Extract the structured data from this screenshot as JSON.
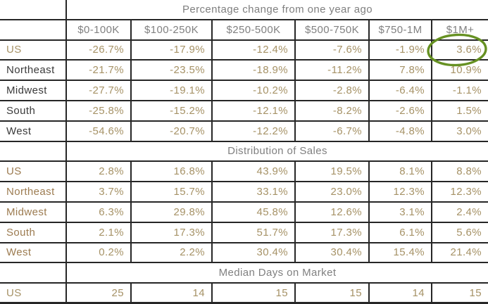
{
  "page": {
    "background": "#ffffff"
  },
  "chart_data": [
    {
      "type": "table",
      "title": "Percentage change from one year ago",
      "columns": [
        "$0-100K",
        "$100-250K",
        "$250-500K",
        "$500-750K",
        "$750-1M",
        "$1M+"
      ],
      "show_column_headers": true,
      "rows": [
        {
          "label": "US",
          "label_style": "tan",
          "values": [
            "-26.7%",
            "-17.9%",
            "-12.4%",
            "-7.6%",
            "-1.9%",
            "3.6%"
          ]
        },
        {
          "label": "Northeast",
          "label_style": "dark",
          "values": [
            "-21.7%",
            "-23.5%",
            "-18.9%",
            "-11.2%",
            "7.8%",
            "10.9%"
          ]
        },
        {
          "label": "Midwest",
          "label_style": "dark",
          "values": [
            "-27.7%",
            "-19.1%",
            "-10.2%",
            "-2.8%",
            "-6.4%",
            "-1.1%"
          ]
        },
        {
          "label": "South",
          "label_style": "dark",
          "values": [
            "-25.8%",
            "-15.2%",
            "-12.1%",
            "-8.2%",
            "-2.6%",
            "1.5%"
          ]
        },
        {
          "label": "West",
          "label_style": "dark",
          "values": [
            "-54.6%",
            "-20.7%",
            "-12.2%",
            "-6.7%",
            "-4.8%",
            "3.0%"
          ]
        }
      ]
    },
    {
      "type": "table",
      "title": "Distribution of Sales",
      "show_column_headers": false,
      "rows": [
        {
          "label": "US",
          "label_style": "brown",
          "values": [
            "2.8%",
            "16.8%",
            "43.9%",
            "19.5%",
            "8.1%",
            "8.8%"
          ]
        },
        {
          "label": "Northeast",
          "label_style": "brown",
          "values": [
            "3.7%",
            "15.7%",
            "33.1%",
            "23.0%",
            "12.3%",
            "12.3%"
          ]
        },
        {
          "label": "Midwest",
          "label_style": "brown",
          "values": [
            "6.3%",
            "29.8%",
            "45.8%",
            "12.6%",
            "3.1%",
            "2.4%"
          ]
        },
        {
          "label": "South",
          "label_style": "brown",
          "values": [
            "2.1%",
            "17.3%",
            "51.7%",
            "17.3%",
            "6.1%",
            "5.6%"
          ]
        },
        {
          "label": "West",
          "label_style": "brown",
          "values": [
            "0.2%",
            "2.2%",
            "30.4%",
            "30.4%",
            "15.4%",
            "21.4%"
          ]
        }
      ]
    },
    {
      "type": "table",
      "title": "Median Days on Market",
      "show_column_headers": false,
      "rows": [
        {
          "label": "US",
          "label_style": "tan",
          "values": [
            "25",
            "14",
            "15",
            "15",
            "14",
            "15"
          ]
        }
      ]
    }
  ],
  "annotation": {
    "shape": "hand-drawn-ellipse",
    "circled_value": "3.6%",
    "circled_cell": "US / $1M+",
    "section": 0,
    "row": 0,
    "col": 5,
    "color": "#669122"
  },
  "colors": {
    "header_text": "#808080",
    "value_text": "#a69266",
    "label_dark": "#3a3a3a",
    "label_tan": "#a69266",
    "label_brown": "#9c7b50",
    "grid_line": "#262626"
  }
}
